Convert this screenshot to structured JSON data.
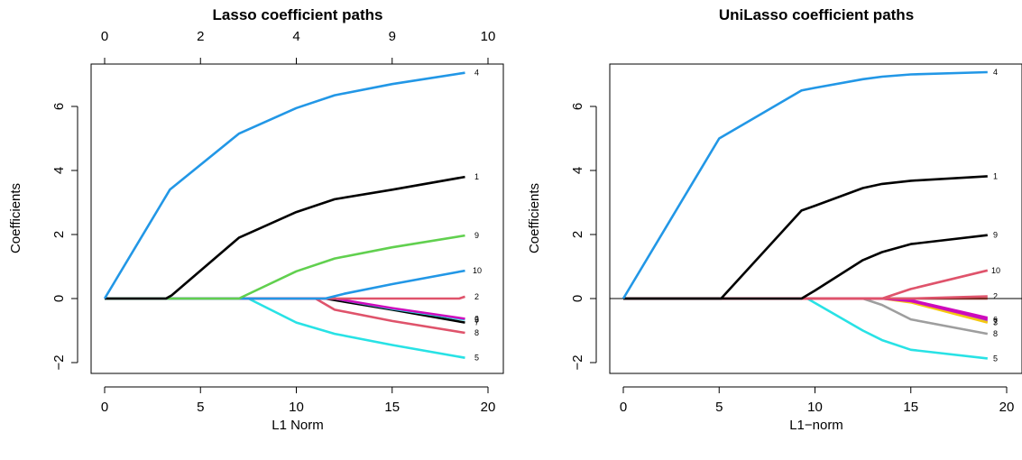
{
  "chart_data": [
    {
      "type": "line",
      "title": "Lasso coefficient paths",
      "xlabel": "L1 Norm",
      "ylabel": "Coefficients",
      "xlim": [
        0,
        20
      ],
      "ylim": [
        -2,
        7
      ],
      "xticks": [
        0,
        5,
        10,
        15,
        20
      ],
      "yticks": [
        -2,
        0,
        2,
        4,
        6
      ],
      "top_axis": {
        "ticks_at_x": [
          0,
          5,
          10,
          15,
          20
        ],
        "labels": [
          "0",
          "2",
          "4",
          "9",
          "10"
        ]
      },
      "zero_line": false,
      "series": [
        {
          "label": "4",
          "color": "#2297E6",
          "x": [
            0,
            3,
            3.4,
            7,
            10,
            12,
            15,
            18.8
          ],
          "y": [
            0,
            3.0,
            3.4,
            5.15,
            5.95,
            6.35,
            6.7,
            7.05
          ]
        },
        {
          "label": "1",
          "color": "#000000",
          "x": [
            0,
            3.2,
            3.5,
            7,
            10,
            12,
            15,
            18.8
          ],
          "y": [
            0,
            0,
            0.1,
            1.9,
            2.7,
            3.1,
            3.4,
            3.8
          ]
        },
        {
          "label": "9",
          "color": "#61D04F",
          "x": [
            0,
            7,
            10,
            12,
            15,
            18.8
          ],
          "y": [
            0,
            0,
            0.85,
            1.25,
            1.6,
            1.97
          ]
        },
        {
          "label": "10",
          "color": "#2297E6",
          "x": [
            0,
            11.5,
            12.5,
            15,
            18.8
          ],
          "y": [
            0,
            0,
            0.15,
            0.45,
            0.87
          ]
        },
        {
          "label": "2",
          "color": "#DF536B",
          "x": [
            0,
            12,
            18.5,
            18.8
          ],
          "y": [
            0,
            0,
            0,
            0.06
          ]
        },
        {
          "label": "6",
          "color": "#CD0BBC",
          "x": [
            0,
            12,
            15,
            18.8
          ],
          "y": [
            0,
            0,
            -0.3,
            -0.63
          ]
        },
        {
          "label": "3",
          "color": "#28E2E5",
          "x": [
            0,
            12,
            15,
            18.8
          ],
          "y": [
            0,
            0,
            -0.32,
            -0.66
          ]
        },
        {
          "label": "7",
          "color": "#000000",
          "x": [
            0,
            11.5,
            15,
            18.8
          ],
          "y": [
            0,
            0,
            -0.35,
            -0.75
          ]
        },
        {
          "label": "8",
          "color": "#DF536B",
          "x": [
            0,
            11,
            12,
            15,
            18.8
          ],
          "y": [
            0,
            0,
            -0.35,
            -0.7,
            -1.07
          ]
        },
        {
          "label": "5",
          "color": "#28E2E5",
          "x": [
            0,
            7.5,
            10,
            12,
            15,
            18.8
          ],
          "y": [
            0,
            0,
            -0.75,
            -1.1,
            -1.45,
            -1.85
          ]
        }
      ]
    },
    {
      "type": "line",
      "title": "UniLasso coefficient paths",
      "xlabel": "L1−norm",
      "ylabel": "Coefficients",
      "xlim": [
        0,
        20
      ],
      "ylim": [
        -2,
        7
      ],
      "xticks": [
        0,
        5,
        10,
        15,
        20
      ],
      "yticks": [
        -2,
        0,
        2,
        4,
        6
      ],
      "zero_line": true,
      "series": [
        {
          "label": "4",
          "color": "#2297E6",
          "x": [
            0,
            5,
            9.3,
            10,
            12.5,
            13.5,
            15,
            19
          ],
          "y": [
            0,
            5.0,
            6.5,
            6.58,
            6.85,
            6.93,
            7.0,
            7.07
          ]
        },
        {
          "label": "1",
          "color": "#000000",
          "x": [
            0,
            5,
            5.1,
            9.3,
            10,
            12.5,
            13.5,
            15,
            19
          ],
          "y": [
            0,
            0,
            0,
            2.75,
            2.9,
            3.45,
            3.58,
            3.68,
            3.82
          ]
        },
        {
          "label": "9",
          "color": "#000000",
          "x": [
            0,
            9.3,
            10,
            12.5,
            13.5,
            15,
            19
          ],
          "y": [
            0,
            0,
            0.25,
            1.2,
            1.45,
            1.7,
            1.98
          ]
        },
        {
          "label": "10",
          "color": "#DF536B",
          "x": [
            0,
            13.5,
            15,
            19
          ],
          "y": [
            0,
            0,
            0.3,
            0.88
          ]
        },
        {
          "label": "2",
          "color": "#DF536B",
          "x": [
            0,
            15,
            19
          ],
          "y": [
            0,
            0,
            0.07
          ]
        },
        {
          "label": "6",
          "color": "#CD0BBC",
          "x": [
            0,
            13.5,
            15,
            19
          ],
          "y": [
            0,
            0,
            -0.08,
            -0.66
          ]
        },
        {
          "label": "3",
          "color": "#F5C710",
          "x": [
            0,
            13.5,
            15,
            19
          ],
          "y": [
            0,
            0,
            -0.12,
            -0.75
          ]
        },
        {
          "label": "7",
          "color": "#9E9E9E",
          "x": [
            0,
            13.5,
            15,
            19
          ],
          "y": [
            0,
            0,
            -0.1,
            -0.72
          ]
        },
        {
          "label": "8",
          "color": "#9E9E9E",
          "x": [
            0,
            12.5,
            13.5,
            15,
            19
          ],
          "y": [
            0,
            0,
            -0.2,
            -0.65,
            -1.1
          ]
        },
        {
          "label": "5",
          "color": "#28E2E5",
          "x": [
            0,
            9.6,
            12.5,
            13.5,
            15,
            19
          ],
          "y": [
            0,
            0,
            -1.0,
            -1.3,
            -1.6,
            -1.87
          ]
        },
        {
          "label": "",
          "color": "#CD0BBC",
          "x": [
            0,
            13.5,
            15,
            19
          ],
          "y": [
            0,
            0,
            -0.05,
            -0.6
          ]
        },
        {
          "label": "",
          "color": "#7B2D26",
          "x": [
            0,
            19
          ],
          "y": [
            0,
            0
          ]
        }
      ]
    }
  ]
}
